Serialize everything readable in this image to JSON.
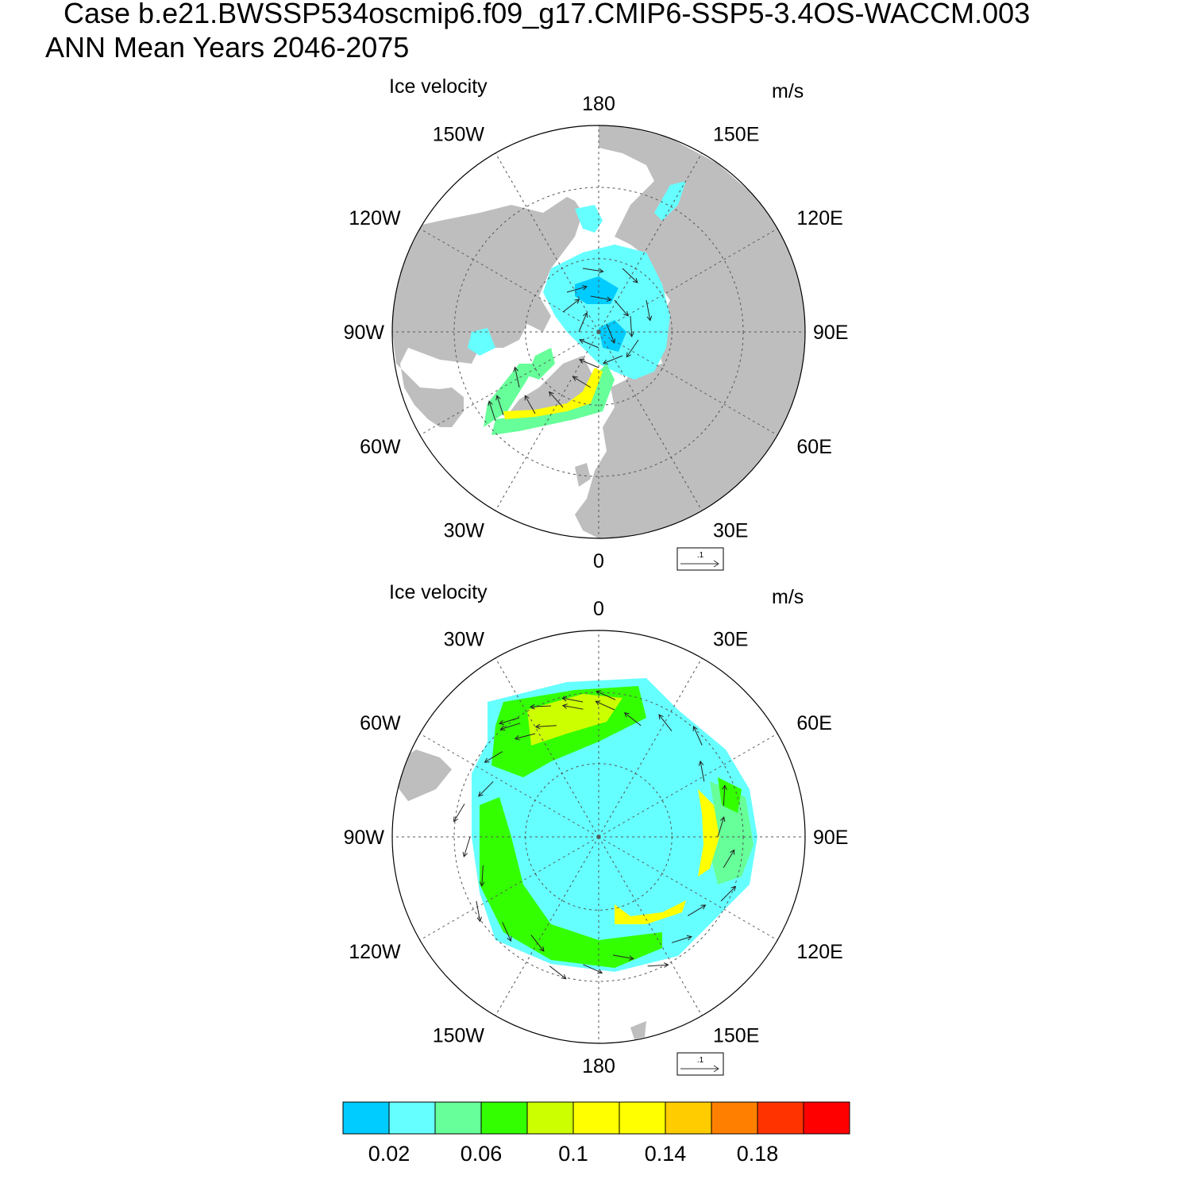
{
  "header": {
    "case_line": "Case b.e21.BWSSP534oscmip6.f09_g17.CMIP6-SSP5-3.4OS-WACCM.003",
    "period_line": "ANN Mean   Years 2046-2075"
  },
  "panels": [
    {
      "id": "north",
      "title": "Ice velocity",
      "units": "m/s",
      "hemisphere": "north",
      "lon_labels": [
        "180",
        "150E",
        "120E",
        "90E",
        "60E",
        "30E",
        "0",
        "30W",
        "60W",
        "90W",
        "120W",
        "150W"
      ],
      "reference_vector_label": ".1"
    },
    {
      "id": "south",
      "title": "Ice velocity",
      "units": "m/s",
      "hemisphere": "south",
      "lon_labels": [
        "0",
        "30E",
        "60E",
        "90E",
        "120E",
        "150E",
        "180",
        "150W",
        "120W",
        "90W",
        "60W",
        "30W"
      ],
      "reference_vector_label": ".1"
    }
  ],
  "colorbar": {
    "tick_labels": [
      "0.02",
      "0.06",
      "0.1",
      "0.14",
      "0.18"
    ],
    "colors": [
      "#00ccff",
      "#66ffff",
      "#66ff99",
      "#33ff00",
      "#ccff00",
      "#ffff00",
      "#ffff00",
      "#ffcc00",
      "#ff8000",
      "#ff3300",
      "#ff0000"
    ]
  },
  "colors": {
    "land": "#bebebe",
    "grid": "#555555",
    "vector": "#222222"
  }
}
